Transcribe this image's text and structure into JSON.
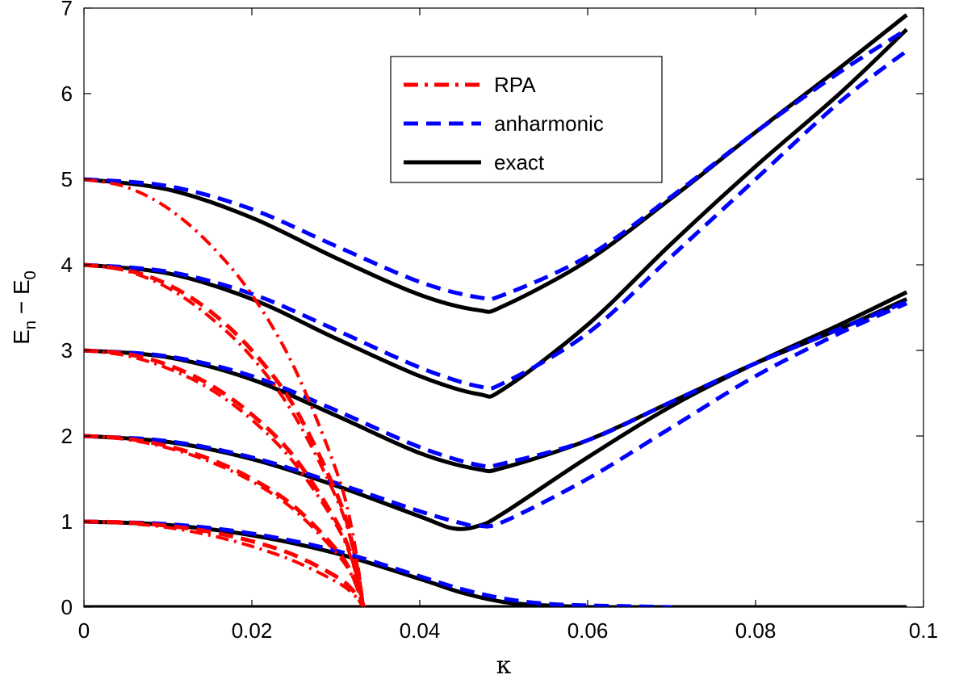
{
  "chart_data": {
    "type": "line",
    "title": "",
    "xlabel": "κ",
    "ylabel": {
      "base": "E",
      "sub1": "n",
      "sep": " − ",
      "base2": "E",
      "sub2": "0"
    },
    "xlim": [
      0,
      0.1
    ],
    "ylim": [
      0,
      7
    ],
    "x_ticks": [
      0,
      0.02,
      0.04,
      0.06,
      0.08,
      0.1
    ],
    "x_tick_labels": [
      "0",
      "0.02",
      "0.04",
      "0.06",
      "0.08",
      "0.1"
    ],
    "y_ticks": [
      0,
      1,
      2,
      3,
      4,
      5,
      6,
      7
    ],
    "y_tick_labels": [
      "0",
      "1",
      "2",
      "3",
      "4",
      "5",
      "6",
      "7"
    ],
    "grid": false,
    "legend_position": "top-center",
    "legend": [
      {
        "label": "RPA",
        "color": "#ff0000",
        "style": "dashdot"
      },
      {
        "label": "anharmonic",
        "color": "#0000ff",
        "style": "dashed"
      },
      {
        "label": "exact",
        "color": "#000000",
        "style": "solid"
      }
    ],
    "series": [
      {
        "group": "RPA",
        "color": "#ff0000",
        "style": "dashdot",
        "x": [
          0,
          0.005,
          0.01,
          0.015,
          0.02,
          0.025,
          0.03,
          0.032,
          0.0333
        ],
        "y": [
          1,
          0.98,
          0.93,
          0.84,
          0.71,
          0.54,
          0.3,
          0.16,
          0
        ]
      },
      {
        "group": "RPA",
        "color": "#ff0000",
        "style": "dashdot",
        "x": [
          0,
          0.005,
          0.01,
          0.015,
          0.02,
          0.025,
          0.03,
          0.032,
          0.0333
        ],
        "y": [
          2,
          1.96,
          1.86,
          1.7,
          1.47,
          1.14,
          0.64,
          0.35,
          0
        ]
      },
      {
        "group": "RPA",
        "color": "#ff0000",
        "style": "dashdot",
        "x": [
          0,
          0.005,
          0.01,
          0.015,
          0.02,
          0.025,
          0.03,
          0.032,
          0.0333
        ],
        "y": [
          3,
          2.94,
          2.79,
          2.55,
          2.19,
          1.69,
          0.97,
          0.52,
          0
        ]
      },
      {
        "group": "RPA",
        "color": "#ff0000",
        "style": "dashdot",
        "x": [
          0,
          0.005,
          0.01,
          0.015,
          0.02,
          0.025,
          0.03,
          0.032,
          0.0333
        ],
        "y": [
          4,
          3.93,
          3.73,
          3.39,
          2.92,
          2.25,
          1.29,
          0.7,
          0
        ]
      },
      {
        "group": "RPA",
        "color": "#ff0000",
        "style": "dashdot",
        "x": [
          0,
          0.005,
          0.01,
          0.015,
          0.02,
          0.025,
          0.03,
          0.032,
          0.0333
        ],
        "y": [
          5,
          4.91,
          4.66,
          4.24,
          3.65,
          2.81,
          1.61,
          0.87,
          0
        ]
      },
      {
        "group": "RPA",
        "color": "#ff0000",
        "style": "dashed",
        "x": [
          0,
          0.005,
          0.01,
          0.015,
          0.02,
          0.025,
          0.03,
          0.032,
          0.0333
        ],
        "y": [
          1,
          0.99,
          0.95,
          0.88,
          0.77,
          0.61,
          0.36,
          0.2,
          0
        ]
      },
      {
        "group": "RPA",
        "color": "#ff0000",
        "style": "dashed",
        "x": [
          0,
          0.005,
          0.01,
          0.015,
          0.02,
          0.025,
          0.03,
          0.032,
          0.0333
        ],
        "y": [
          2,
          1.97,
          1.88,
          1.73,
          1.5,
          1.18,
          0.68,
          0.37,
          0
        ]
      },
      {
        "group": "RPA",
        "color": "#ff0000",
        "style": "dashed",
        "x": [
          0,
          0.005,
          0.01,
          0.015,
          0.02,
          0.025,
          0.03,
          0.032,
          0.0333
        ],
        "y": [
          3,
          2.96,
          2.83,
          2.6,
          2.25,
          1.76,
          1.01,
          0.55,
          0
        ]
      },
      {
        "group": "RPA",
        "color": "#ff0000",
        "style": "dashed",
        "x": [
          0,
          0.005,
          0.01,
          0.015,
          0.02,
          0.025,
          0.03,
          0.032,
          0.0333
        ],
        "y": [
          4,
          3.94,
          3.77,
          3.46,
          3.0,
          2.35,
          1.35,
          0.73,
          0
        ]
      },
      {
        "group": "anharmonic",
        "color": "#0000ff",
        "style": "dashed",
        "x": [
          0,
          0.01,
          0.02,
          0.03,
          0.04,
          0.045,
          0.05,
          0.055,
          0.06,
          0.065,
          0.07
        ],
        "y": [
          1,
          0.97,
          0.86,
          0.66,
          0.36,
          0.21,
          0.1,
          0.04,
          0.02,
          0.01,
          0
        ]
      },
      {
        "group": "anharmonic",
        "color": "#0000ff",
        "style": "dashed",
        "x": [
          0,
          0.01,
          0.02,
          0.03,
          0.04,
          0.045,
          0.047,
          0.05,
          0.06,
          0.07,
          0.08,
          0.09,
          0.098
        ],
        "y": [
          2,
          1.94,
          1.75,
          1.45,
          1.12,
          0.98,
          0.95,
          1.0,
          1.5,
          2.1,
          2.7,
          3.2,
          3.55
        ]
      },
      {
        "group": "anharmonic",
        "color": "#0000ff",
        "style": "dashed",
        "x": [
          0,
          0.01,
          0.02,
          0.03,
          0.04,
          0.047,
          0.05,
          0.06,
          0.07,
          0.08,
          0.09,
          0.098
        ],
        "y": [
          3,
          2.93,
          2.7,
          2.3,
          1.87,
          1.66,
          1.68,
          1.95,
          2.4,
          2.85,
          3.25,
          3.57
        ]
      },
      {
        "group": "anharmonic",
        "color": "#0000ff",
        "style": "dashed",
        "x": [
          0,
          0.01,
          0.02,
          0.03,
          0.04,
          0.047,
          0.05,
          0.06,
          0.07,
          0.08,
          0.09,
          0.098
        ],
        "y": [
          4,
          3.92,
          3.66,
          3.24,
          2.8,
          2.58,
          2.62,
          3.2,
          4.1,
          5.0,
          5.9,
          6.5
        ]
      },
      {
        "group": "anharmonic",
        "color": "#0000ff",
        "style": "dashed",
        "x": [
          0,
          0.01,
          0.02,
          0.03,
          0.04,
          0.047,
          0.05,
          0.06,
          0.07,
          0.08,
          0.09,
          0.098
        ],
        "y": [
          5,
          4.92,
          4.65,
          4.22,
          3.8,
          3.62,
          3.65,
          4.1,
          4.8,
          5.55,
          6.25,
          6.75
        ]
      },
      {
        "group": "exact",
        "color": "#000000",
        "style": "solid",
        "x": [
          0,
          0.098
        ],
        "y": [
          0,
          0
        ]
      },
      {
        "group": "exact",
        "color": "#000000",
        "style": "solid",
        "x": [
          0,
          0.01,
          0.02,
          0.03,
          0.04,
          0.045,
          0.05,
          0.055,
          0.06
        ],
        "y": [
          1,
          0.96,
          0.84,
          0.63,
          0.33,
          0.17,
          0.06,
          0.02,
          0
        ]
      },
      {
        "group": "exact",
        "color": "#000000",
        "style": "solid",
        "x": [
          0,
          0.01,
          0.02,
          0.03,
          0.04,
          0.044,
          0.047,
          0.05,
          0.06,
          0.07,
          0.08,
          0.09,
          0.098
        ],
        "y": [
          2,
          1.93,
          1.73,
          1.42,
          1.06,
          0.92,
          0.95,
          1.1,
          1.75,
          2.35,
          2.85,
          3.3,
          3.68
        ]
      },
      {
        "group": "exact",
        "color": "#000000",
        "style": "solid",
        "x": [
          0,
          0.01,
          0.02,
          0.03,
          0.04,
          0.047,
          0.05,
          0.06,
          0.07,
          0.08,
          0.09,
          0.098
        ],
        "y": [
          3,
          2.92,
          2.66,
          2.24,
          1.8,
          1.61,
          1.63,
          1.95,
          2.4,
          2.85,
          3.25,
          3.6
        ]
      },
      {
        "group": "exact",
        "color": "#000000",
        "style": "solid",
        "x": [
          0,
          0.01,
          0.02,
          0.03,
          0.04,
          0.047,
          0.05,
          0.06,
          0.07,
          0.08,
          0.09,
          0.098
        ],
        "y": [
          4,
          3.9,
          3.6,
          3.14,
          2.7,
          2.49,
          2.55,
          3.3,
          4.25,
          5.15,
          6.0,
          6.75
        ]
      },
      {
        "group": "exact",
        "color": "#000000",
        "style": "solid",
        "x": [
          0,
          0.01,
          0.02,
          0.03,
          0.04,
          0.047,
          0.05,
          0.06,
          0.07,
          0.08,
          0.09,
          0.098
        ],
        "y": [
          5,
          4.88,
          4.55,
          4.08,
          3.65,
          3.47,
          3.52,
          4.05,
          4.78,
          5.55,
          6.3,
          6.92
        ]
      }
    ]
  }
}
